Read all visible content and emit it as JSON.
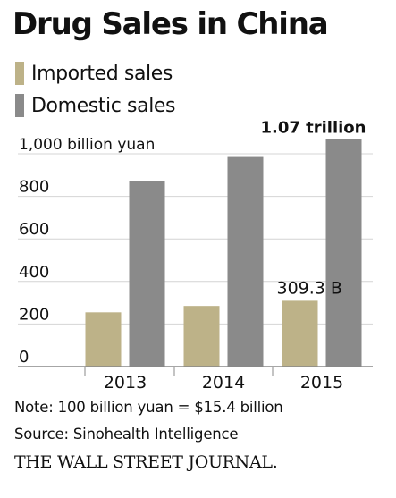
{
  "title": "Drug Sales in China",
  "colors": {
    "imported": "#bdb288",
    "domestic": "#8a8a8a",
    "grid": "#d4d4d4",
    "axis": "#888888",
    "text": "#111111"
  },
  "chart_data": {
    "type": "bar",
    "title": "Drug Sales in China",
    "unit_label": "1,000 billion yuan",
    "categories": [
      "2013",
      "2014",
      "2015"
    ],
    "series": [
      {
        "name": "Imported sales",
        "values": [
          255,
          285,
          309.3
        ],
        "color": "#bdb288"
      },
      {
        "name": "Domestic sales",
        "values": [
          870,
          985,
          1070
        ],
        "color": "#8a8a8a"
      }
    ],
    "y_ticks": [
      {
        "value": 0,
        "label": "0"
      },
      {
        "value": 200,
        "label": "200"
      },
      {
        "value": 400,
        "label": "400"
      },
      {
        "value": 600,
        "label": "600"
      },
      {
        "value": 800,
        "label": "800"
      },
      {
        "value": 1000,
        "label": "1,000 billion yuan"
      }
    ],
    "ylim": [
      0,
      1100
    ],
    "grid": true,
    "legend_position": "top-left",
    "annotations": [
      {
        "series": 1,
        "category": 2,
        "text": "1.07 trillion"
      },
      {
        "series": 0,
        "category": 2,
        "text": "309.3 B"
      }
    ]
  },
  "footer": {
    "note": "Note: 100 billion yuan = $15.4 billion",
    "source": "Source: Sinohealth Intelligence",
    "publisher": "THE WALL STREET JOURNAL."
  }
}
